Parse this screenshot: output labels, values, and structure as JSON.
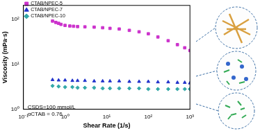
{
  "chart_data": {
    "type": "scatter",
    "x_label": "Shear Rate (1/s)",
    "y_label": "Viscosity (mPa·s)",
    "log": true,
    "grid": false,
    "legend": "upper left",
    "annotations": [
      "CSDS=100 mmol/L",
      "αCTAB = 0.76"
    ],
    "xlim": [
      0.1,
      1000
    ],
    "ylim": [
      1,
      200
    ],
    "xticks": [
      {
        "value": 0.1,
        "label": "10⁻¹"
      },
      {
        "value": 1,
        "label": "10⁰"
      },
      {
        "value": 10,
        "label": "10¹"
      },
      {
        "value": 100,
        "label": "10²"
      },
      {
        "value": 1000,
        "label": "10³"
      }
    ],
    "yticks": [
      {
        "value": 1,
        "label": "10⁰"
      },
      {
        "value": 10,
        "label": "10¹"
      },
      {
        "value": 100,
        "label": "10²"
      }
    ],
    "series": [
      {
        "name": "CTAB/NPEC-5",
        "color": "#cc33cc",
        "marker": "square",
        "x": [
          0.5,
          0.6,
          0.7,
          0.8,
          1,
          1.3,
          1.6,
          2,
          3,
          5,
          8,
          12,
          20,
          35,
          60,
          100,
          170,
          300,
          500,
          750,
          1000
        ],
        "values": [
          90,
          84,
          80,
          76,
          72,
          70,
          69,
          68,
          67,
          66,
          64,
          62,
          60,
          56,
          52,
          47,
          40,
          33,
          27,
          23,
          20
        ]
      },
      {
        "name": "CTAB/NPEC-7",
        "color": "#2233cc",
        "marker": "triangle",
        "x": [
          0.5,
          0.7,
          1,
          1.5,
          2,
          3,
          5,
          8,
          12,
          20,
          35,
          60,
          100,
          170,
          300,
          500,
          750,
          1000
        ],
        "values": [
          4.5,
          4.4,
          4.4,
          4.3,
          4.3,
          4.3,
          4.2,
          4.2,
          4.2,
          4.2,
          4.1,
          4.1,
          4.1,
          4.0,
          4.0,
          3.9,
          3.9,
          3.8
        ]
      },
      {
        "name": "CTAB/NPEC-10",
        "color": "#33a8a8",
        "marker": "diamond",
        "x": [
          0.5,
          0.7,
          1,
          1.5,
          2,
          3,
          5,
          8,
          12,
          20,
          35,
          60,
          100,
          170,
          300,
          500,
          750,
          1000
        ],
        "values": [
          3.3,
          3.2,
          3.1,
          3.1,
          3.0,
          3.0,
          3.0,
          2.9,
          2.9,
          2.9,
          2.9,
          2.9,
          2.8,
          2.8,
          2.8,
          2.8,
          2.8,
          2.8
        ]
      }
    ]
  }
}
